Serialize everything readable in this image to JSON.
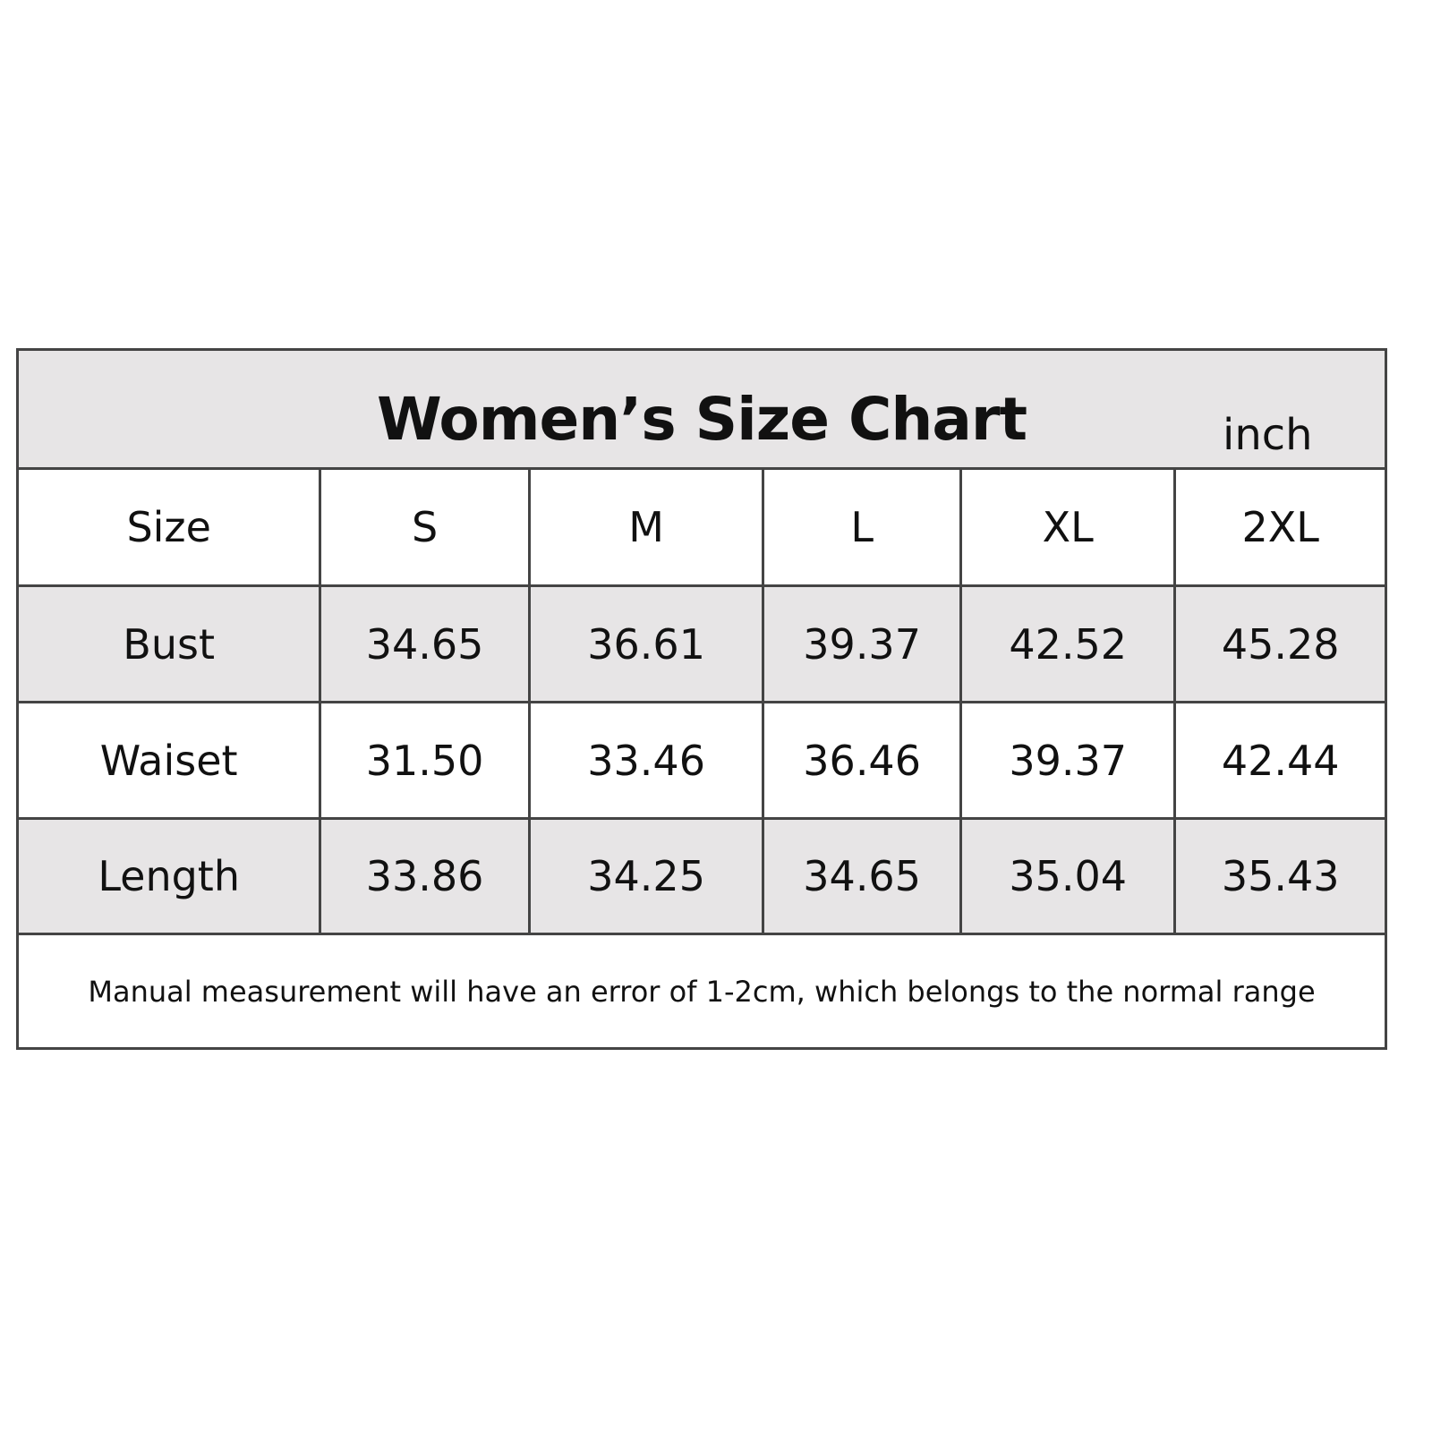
{
  "chart_data": {
    "type": "table",
    "title": "Women’s Size Chart",
    "unit": "inch",
    "columns": [
      "Size",
      "S",
      "M",
      "L",
      "XL",
      "2XL"
    ],
    "rows": [
      {
        "label": "Bust",
        "values": [
          "34.65",
          "36.61",
          "39.37",
          "42.52",
          "45.28"
        ]
      },
      {
        "label": "Waiset",
        "values": [
          "31.50",
          "33.46",
          "36.46",
          "39.37",
          "42.44"
        ]
      },
      {
        "label": "Length",
        "values": [
          "33.86",
          "34.25",
          "34.65",
          "35.04",
          "35.43"
        ]
      }
    ],
    "note": "Manual measurement will have an error of 1-2cm, which belongs to the normal range"
  },
  "colors": {
    "header_fill": "#e7e5e6",
    "border": "#444444"
  }
}
